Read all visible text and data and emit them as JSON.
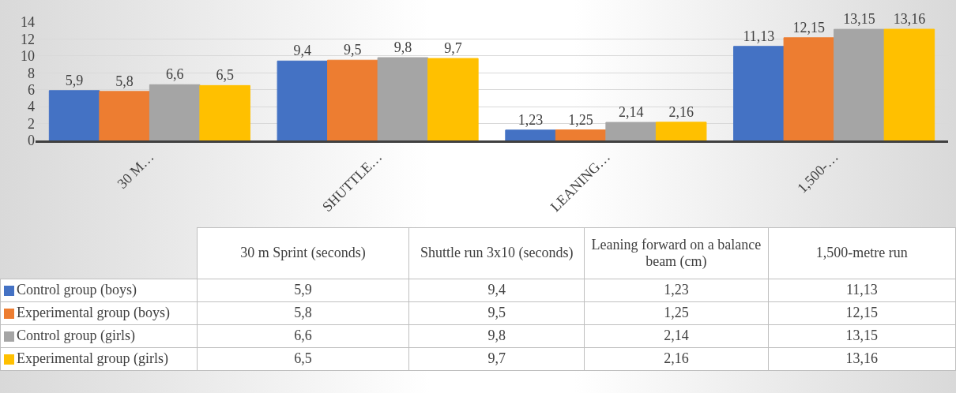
{
  "chart_data": {
    "type": "bar",
    "categories": [
      "30 M…",
      "SHUTTLE…",
      "LEANING…",
      "1,500-…"
    ],
    "series": [
      {
        "name": "Control group (boys)",
        "color": "#4472c4",
        "values": [
          5.9,
          9.4,
          1.23,
          11.13
        ],
        "value_labels": [
          "5,9",
          "9,4",
          "1,23",
          "11,13"
        ]
      },
      {
        "name": "Experimental group (boys)",
        "color": "#ed7d31",
        "values": [
          5.8,
          9.5,
          1.25,
          12.15
        ],
        "value_labels": [
          "5,8",
          "9,5",
          "1,25",
          "12,15"
        ]
      },
      {
        "name": "Control group (girls)",
        "color": "#a5a5a5",
        "values": [
          6.6,
          9.8,
          2.14,
          13.15
        ],
        "value_labels": [
          "6,6",
          "9,8",
          "2,14",
          "13,15"
        ]
      },
      {
        "name": "Experimental group (girls)",
        "color": "#ffc000",
        "values": [
          6.5,
          9.7,
          2.16,
          13.16
        ],
        "value_labels": [
          "6,5",
          "9,7",
          "2,16",
          "13,16"
        ]
      }
    ],
    "annotations": [
      "30 m Sprint (seconds)",
      "Shuttle run 3x10 (seconds)",
      "Leaning forward on a balance beam (cm)",
      "1,500-metre run"
    ],
    "ylim": [
      0,
      14
    ],
    "yticks": [
      0,
      2,
      4,
      6,
      8,
      10,
      12,
      14
    ],
    "grid": "y",
    "legend": "bottom"
  }
}
